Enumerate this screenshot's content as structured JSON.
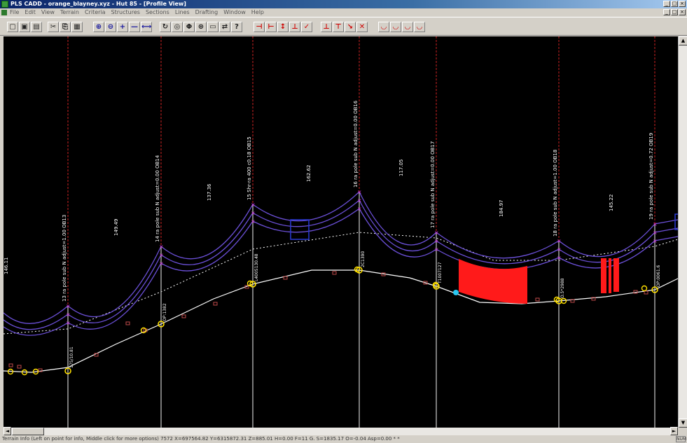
{
  "window": {
    "title": "PLS CADD - orange_blayney.xyz - Hut 85 - [Profile View]",
    "minimize": "_",
    "maximize": "□",
    "close": "×"
  },
  "menubar": {
    "items": [
      "File",
      "Edit",
      "View",
      "Terrain",
      "Criteria",
      "Structures",
      "Sections",
      "Lines",
      "Drafting",
      "Window",
      "Help"
    ]
  },
  "toolbar": {
    "groups": [
      {
        "icons": [
          "new-icon",
          "open-icon",
          "save-icon"
        ],
        "glyphs": [
          "▢",
          "▣",
          "▤"
        ],
        "color": "black"
      },
      {
        "icons": [
          "cut-icon",
          "copy-icon",
          "paste-icon"
        ],
        "glyphs": [
          "✂",
          "⎘",
          "▦"
        ],
        "color": "black"
      },
      {
        "icons": [
          "zoom-in-icon",
          "zoom-out-icon",
          "zoom-plus-icon",
          "zoom-minus-icon",
          "zoom-extents-icon"
        ],
        "glyphs": [
          "⊕",
          "⊖",
          "+",
          "—",
          "⟷"
        ],
        "color": "blue"
      },
      {
        "icons": [
          "rotate-icon",
          "pan-icon",
          "orbit-icon",
          "redraw-icon",
          "print-icon",
          "paste-special-icon",
          "help-icon"
        ],
        "glyphs": [
          "↻",
          "◎",
          "Φ",
          "⊛",
          "▭",
          "⇄",
          "?"
        ],
        "color": "black"
      },
      {
        "icons": [
          "add-structure-icon",
          "move-structure-icon",
          "structure-up-icon",
          "structure-span-icon",
          "structure-check-icon"
        ],
        "glyphs": [
          "⊣",
          "⊢",
          "↕",
          "⊥",
          "✓"
        ],
        "color": "red"
      },
      {
        "icons": [
          "terrain-add-icon",
          "terrain-move-icon",
          "terrain-slope-icon",
          "terrain-delete-icon"
        ],
        "glyphs": [
          "⊥",
          "⊤",
          "↘",
          "✕"
        ],
        "color": "red"
      },
      {
        "icons": [
          "sag-icon",
          "sag-check-icon",
          "sag-clearance-icon",
          "sag-report-icon"
        ],
        "glyphs": [
          "◡",
          "◡",
          "◡",
          "◡"
        ],
        "color": "red"
      }
    ]
  },
  "profile": {
    "structures": [
      {
        "label": "13 ra pole sub N adjust=1.00 OB13",
        "ground": "175/10.81"
      },
      {
        "label": "14 ra pole sub N adjust=0.00 OB14",
        "ground": "OP:1382"
      },
      {
        "label": "15 Shr-ra 400 c0.18 OB15",
        "ground": "L4005130.48"
      },
      {
        "label": "16 ra pole sub N adjust=0.00 OB16",
        "ground": "2C1390"
      },
      {
        "label": "17 ra pole sub N adjust=0.00 OB17",
        "ground": "T1007127"
      },
      {
        "label": "18 ra pole sub N adjust=1.00 OB18",
        "ground": "O.5*2988"
      },
      {
        "label": "19 ra pole sub N adjust=0.72 OB19",
        "ground": "OP:0061.6"
      }
    ],
    "spans": [
      "146.11",
      "149.49",
      "137.36",
      "162.62",
      "117.05",
      "184.97",
      "145.22"
    ],
    "colors": {
      "background": "#000000",
      "structure_line": "#cc2222",
      "conductor": "#6a4fd6",
      "ground_line": "#ffffff",
      "clearance_line": "#ffffff",
      "violation": "#ff1a1a",
      "insulator": "#2a3ad6",
      "node_marker": "#ffe000",
      "attach_marker": "#d030d0"
    }
  },
  "statusbar": {
    "text": "Terrain Info (Left on point for info, Middle click for more options) 7572 X=697564.82 Y=6315872.31 Z=885.01 H=0.00 F=11 G. S=1835.17 O=-0.04 Asp=0.00 * *",
    "right": "NUM"
  }
}
